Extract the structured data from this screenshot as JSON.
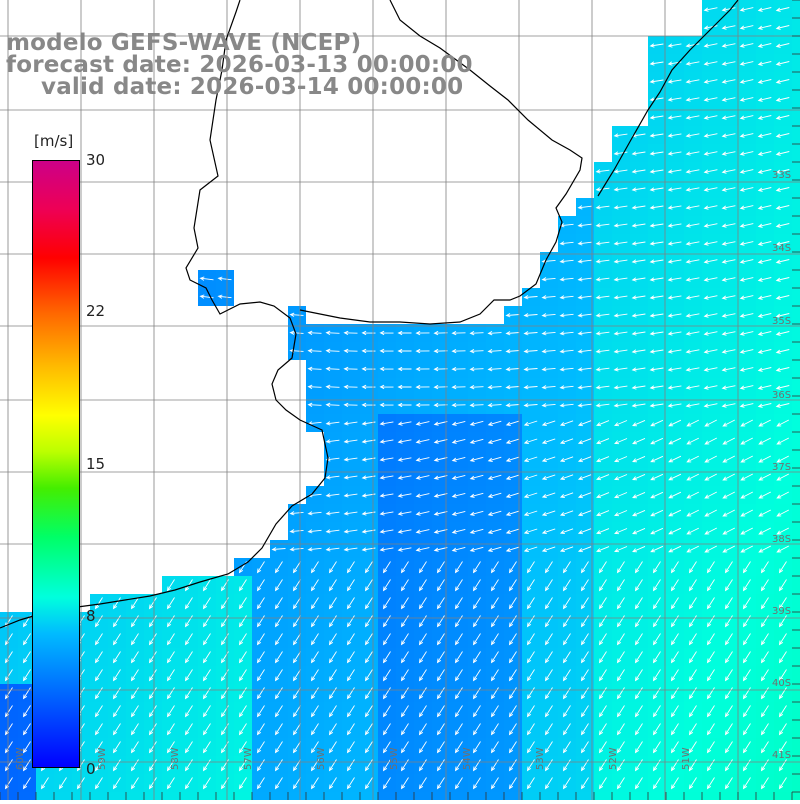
{
  "title": {
    "line1": "modelo GEFS-WAVE (NCEP)",
    "line2": "forecast date: 2026-03-13 00:00:00",
    "line3": "valid date: 2026-03-14 00:00:00"
  },
  "colorbar": {
    "unit": "[m/s]",
    "ticks": [
      "30",
      "22",
      "15",
      "8",
      "0"
    ],
    "min": 0,
    "max": 30
  },
  "map": {
    "lat_labels": [
      "33S",
      "34S",
      "35S",
      "36S",
      "37S",
      "38S",
      "39S",
      "40S",
      "41S"
    ],
    "lon_labels": [
      "60W",
      "59W",
      "58W",
      "57W",
      "56W",
      "55W",
      "54W",
      "53W",
      "52W",
      "51W"
    ],
    "wind_direction": "northeast wind (arrows pointing southwest)",
    "colors": {
      "land": "#ffffff",
      "grid": "#808080",
      "coast": "#000000",
      "arrow": "#ffffff"
    }
  }
}
